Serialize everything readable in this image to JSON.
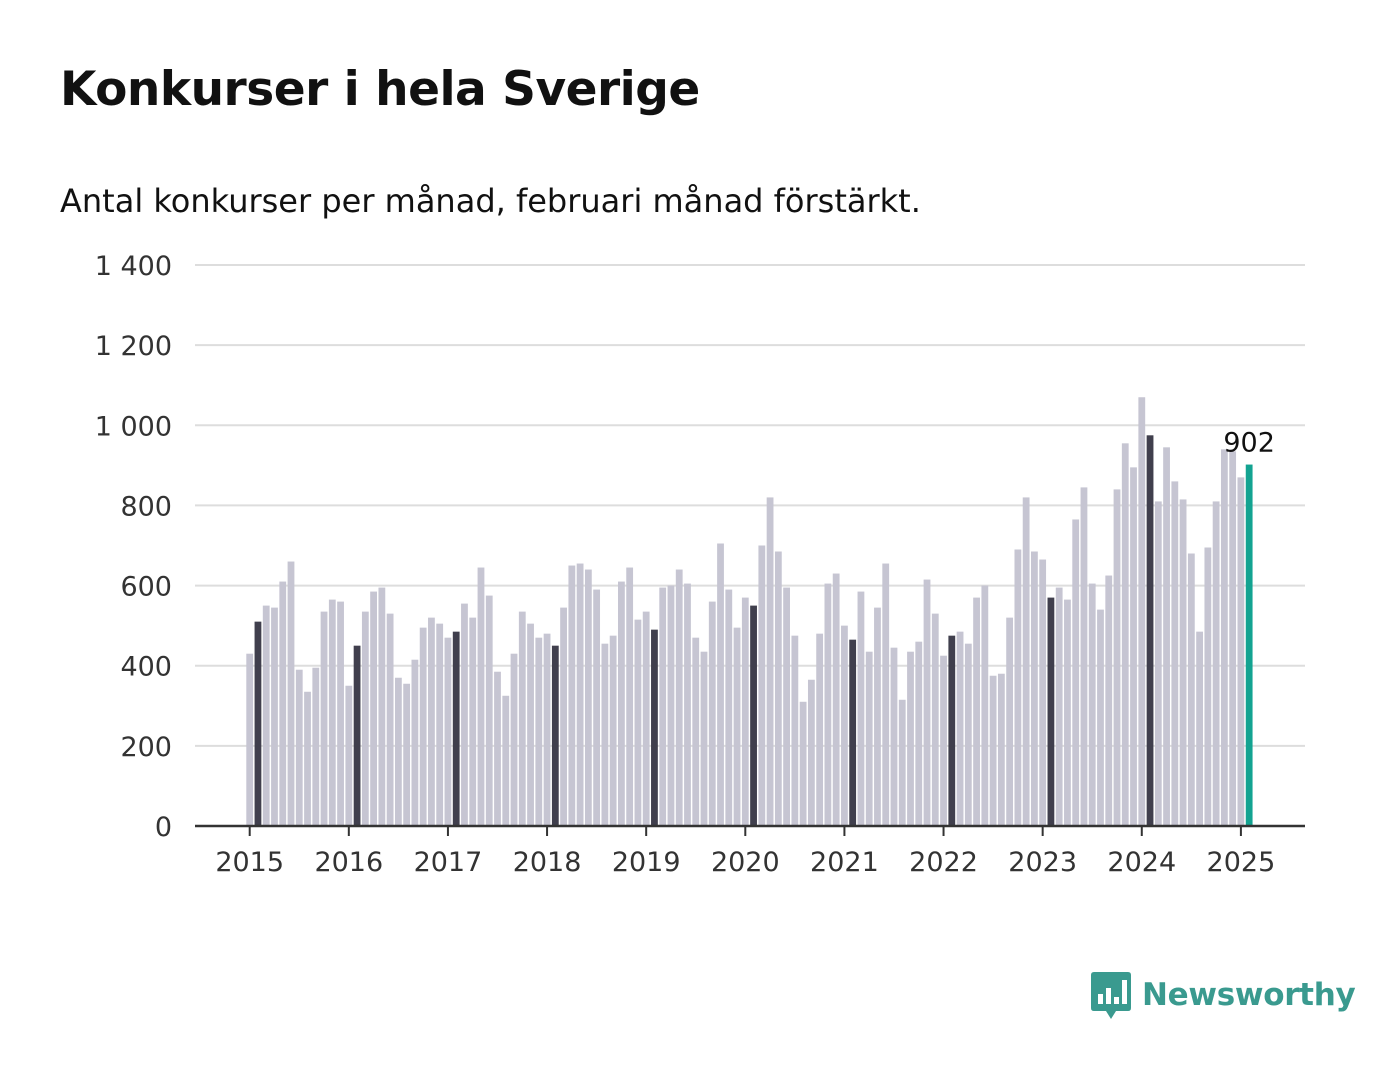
{
  "title": "Konkurser i hela Sverige",
  "subtitle": "Antal konkurser per månad, februari månad förstärkt.",
  "brand": {
    "name": "Newsworthy",
    "icon": "newsworthy-logo-icon"
  },
  "colors": {
    "bar": "#c6c5d2",
    "highlight": "#403f4d",
    "latest": "#13a391",
    "grid": "#dddddd",
    "axis": "#333333",
    "brand": "#3a9a8f"
  },
  "chart_data": {
    "type": "bar",
    "title": "Konkurser i hela Sverige",
    "subtitle": "Antal konkurser per månad, februari månad förstärkt.",
    "xlabel": "",
    "ylabel": "",
    "ylim": [
      0,
      1400
    ],
    "yticks": [
      0,
      200,
      400,
      600,
      800,
      1000,
      1200,
      1400
    ],
    "ytick_labels": [
      "0",
      "200",
      "400",
      "600",
      "800",
      "1 000",
      "1 200",
      "1 400"
    ],
    "xtick_labels": [
      "2015",
      "2016",
      "2017",
      "2018",
      "2019",
      "2020",
      "2021",
      "2022",
      "2023",
      "2024",
      "2025"
    ],
    "start": "2015-01",
    "highlight": "februari",
    "grid": true,
    "latest_label": "902",
    "values": [
      430,
      510,
      550,
      545,
      610,
      660,
      390,
      335,
      395,
      535,
      565,
      560,
      350,
      450,
      535,
      585,
      595,
      530,
      370,
      355,
      415,
      495,
      520,
      505,
      470,
      485,
      555,
      520,
      645,
      575,
      385,
      325,
      430,
      535,
      505,
      470,
      480,
      450,
      545,
      650,
      655,
      640,
      590,
      455,
      475,
      610,
      645,
      515,
      535,
      490,
      595,
      600,
      640,
      605,
      470,
      435,
      560,
      705,
      590,
      495,
      570,
      550,
      700,
      820,
      685,
      595,
      475,
      310,
      365,
      480,
      605,
      630,
      500,
      465,
      585,
      435,
      545,
      655,
      445,
      315,
      435,
      460,
      615,
      530,
      425,
      475,
      485,
      455,
      570,
      600,
      375,
      380,
      520,
      690,
      820,
      685,
      665,
      570,
      595,
      565,
      765,
      845,
      605,
      540,
      625,
      840,
      955,
      895,
      1070,
      975,
      810,
      945,
      860,
      815,
      680,
      485,
      695,
      810,
      940,
      935,
      870,
      902
    ]
  }
}
